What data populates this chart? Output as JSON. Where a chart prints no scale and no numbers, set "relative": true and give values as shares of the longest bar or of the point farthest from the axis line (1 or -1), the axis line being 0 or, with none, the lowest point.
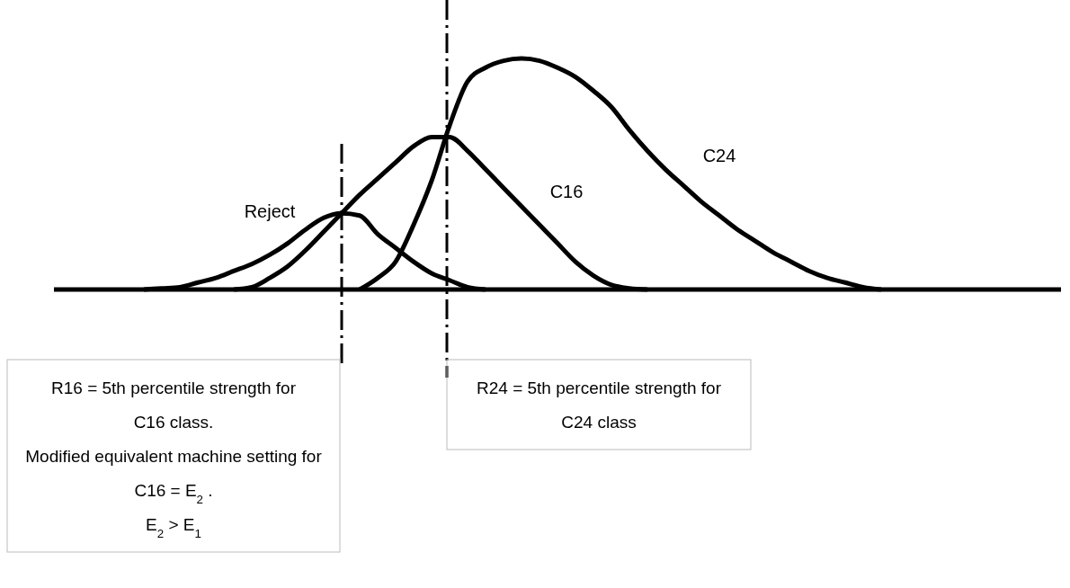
{
  "chart_data": {
    "type": "line",
    "relative": true,
    "marker": "none",
    "line_style": "solid",
    "categories": [
      null,
      null,
      null,
      null,
      null,
      null,
      null,
      null,
      null,
      null,
      null,
      null,
      null,
      null,
      null,
      null,
      null,
      null,
      null,
      null,
      null,
      null,
      null,
      null,
      null,
      null,
      null,
      null,
      null,
      null,
      null,
      null,
      null,
      null,
      null,
      null,
      null,
      null,
      null,
      null,
      null,
      null,
      null,
      null,
      null,
      null,
      null,
      null,
      null,
      null,
      null,
      null,
      null,
      null,
      null,
      null,
      null
    ],
    "series": [
      {
        "name": "Reject",
        "color": "#000000",
        "values": [
          null,
          null,
          null,
          null,
          null,
          0,
          0.005,
          0.01,
          0.03,
          0.05,
          0.08,
          0.11,
          0.15,
          0.2,
          0.26,
          0.31,
          0.33,
          0.32,
          0.24,
          0.18,
          0.12,
          0.07,
          0.04,
          0.01,
          0,
          null,
          null,
          null,
          null,
          null,
          null,
          null,
          null,
          null,
          null,
          null,
          null,
          null,
          null,
          null,
          null,
          null,
          null,
          null,
          null,
          null,
          null,
          null,
          null,
          null,
          null,
          null,
          null,
          null,
          null,
          null,
          null
        ]
      },
      {
        "name": "C16",
        "color": "#000000",
        "values": [
          null,
          null,
          null,
          null,
          null,
          null,
          null,
          null,
          null,
          null,
          0,
          0.01,
          0.05,
          0.1,
          0.17,
          0.25,
          0.33,
          0.41,
          0.48,
          0.55,
          0.62,
          0.66,
          0.66,
          0.6,
          0.52,
          0.44,
          0.36,
          0.28,
          0.2,
          0.12,
          0.06,
          0.02,
          0.005,
          0,
          null,
          null,
          null,
          null,
          null,
          null,
          null,
          null,
          null,
          null,
          null,
          null,
          null,
          null,
          null,
          null,
          null,
          null,
          null,
          null,
          null,
          null,
          null
        ]
      },
      {
        "name": "C24",
        "color": "#000000",
        "values": [
          null,
          null,
          null,
          null,
          null,
          null,
          null,
          null,
          null,
          null,
          null,
          null,
          null,
          null,
          null,
          null,
          null,
          0,
          0.05,
          0.12,
          0.28,
          0.47,
          0.71,
          0.9,
          0.96,
          0.99,
          1,
          0.99,
          0.96,
          0.92,
          0.86,
          0.79,
          0.69,
          0.6,
          0.52,
          0.45,
          0.38,
          0.32,
          0.26,
          0.21,
          0.16,
          0.12,
          0.08,
          0.05,
          0.03,
          0.01,
          0,
          null,
          null,
          null,
          null,
          null,
          null,
          null,
          null,
          null,
          null
        ]
      }
    ],
    "annotations": [
      "R16 = 5th percentile strength for\nC16 class.\nModified equivalent machine setting for\nC16 = E$_{2}$.\nE$_{2}$ > E$_{1}$",
      "R24 = 5th percentile strength for\nC24 class"
    ]
  }
}
